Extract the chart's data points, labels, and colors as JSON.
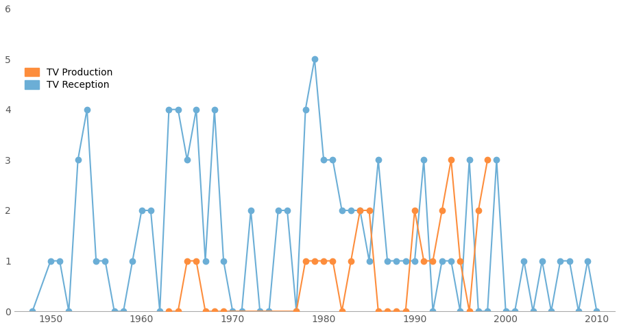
{
  "tv_reception_x": [
    1948,
    1950,
    1951,
    1952,
    1953,
    1954,
    1955,
    1956,
    1957,
    1958,
    1959,
    1960,
    1961,
    1962,
    1963,
    1964,
    1965,
    1966,
    1967,
    1968,
    1969,
    1970,
    1971,
    1972,
    1973,
    1974,
    1975,
    1976,
    1977,
    1978,
    1979,
    1980,
    1981,
    1982,
    1983,
    1984,
    1985,
    1986,
    1987,
    1988,
    1989,
    1990,
    1991,
    1992,
    1993,
    1994,
    1995,
    1996,
    1997,
    1998,
    1999,
    2000,
    2001,
    2002,
    2003,
    2004,
    2005,
    2006,
    2007,
    2008,
    2009,
    2010
  ],
  "tv_reception_y": [
    0,
    1,
    1,
    0,
    3,
    4,
    1,
    1,
    0,
    0,
    1,
    2,
    2,
    0,
    4,
    4,
    3,
    4,
    1,
    4,
    1,
    0,
    0,
    2,
    0,
    0,
    2,
    2,
    0,
    4,
    5,
    3,
    3,
    2,
    2,
    2,
    1,
    3,
    1,
    1,
    1,
    1,
    3,
    0,
    1,
    1,
    0,
    3,
    0,
    0,
    3,
    0,
    0,
    1,
    0,
    1,
    0,
    1,
    1,
    0,
    1,
    0
  ],
  "tv_production_x": [
    1963,
    1964,
    1965,
    1966,
    1967,
    1968,
    1969,
    1977,
    1978,
    1979,
    1980,
    1981,
    1982,
    1983,
    1984,
    1985,
    1986,
    1987,
    1988,
    1989,
    1990,
    1991,
    1992,
    1993,
    1994,
    1995,
    1996,
    1997,
    1998
  ],
  "tv_production_y": [
    0,
    0,
    1,
    1,
    0,
    0,
    0,
    0,
    1,
    1,
    1,
    1,
    0,
    1,
    2,
    2,
    0,
    0,
    0,
    0,
    2,
    1,
    1,
    2,
    3,
    1,
    0,
    2,
    3
  ],
  "reception_color": "#6baed6",
  "production_color": "#fd8d3c",
  "marker_size": 6,
  "linewidth": 1.5,
  "ylim": [
    0,
    6
  ],
  "xlim": [
    1946,
    2012
  ],
  "yticks": [
    0,
    1,
    2,
    3,
    4,
    5,
    6
  ],
  "xticks": [
    1950,
    1960,
    1970,
    1980,
    1990,
    2000,
    2010
  ],
  "background_color": "#ffffff",
  "legend_production": "TV Production",
  "legend_reception": "TV Reception"
}
